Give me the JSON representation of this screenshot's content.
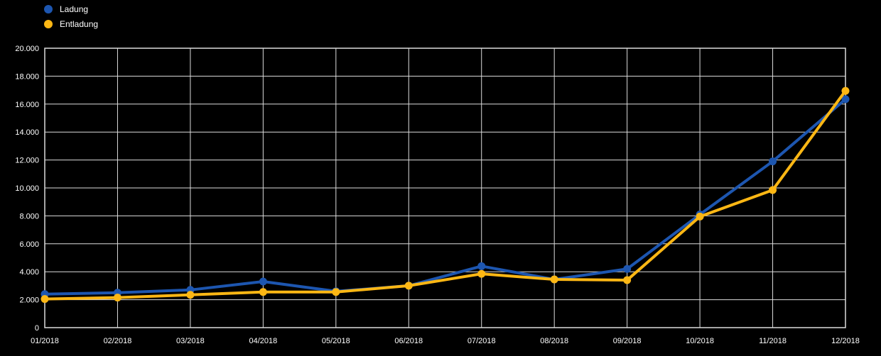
{
  "page": {
    "background": "#000000",
    "text_color": "#ffffff",
    "grid_color": "#dcdcdc"
  },
  "legend": {
    "position": "top-left",
    "items": [
      {
        "label": "Ladung",
        "color": "#1d56b0"
      },
      {
        "label": "Entladung",
        "color": "#fdb714"
      }
    ]
  },
  "chart_data": {
    "type": "line",
    "title": "",
    "xlabel": "",
    "ylabel": "",
    "x": [
      "01/2018",
      "02/2018",
      "03/2018",
      "04/2018",
      "05/2018",
      "06/2018",
      "07/2018",
      "08/2018",
      "09/2018",
      "10/2018",
      "11/2018",
      "12/2018"
    ],
    "series": [
      {
        "name": "Ladung",
        "color": "#1d56b0",
        "values": [
          2400,
          2500,
          2700,
          3300,
          2600,
          3000,
          4400,
          3450,
          4200,
          8100,
          11900,
          16350
        ]
      },
      {
        "name": "Entladung",
        "color": "#fdb714",
        "values": [
          2050,
          2150,
          2350,
          2550,
          2550,
          3000,
          3850,
          3450,
          3400,
          7950,
          9850,
          16950
        ]
      }
    ],
    "ylim": [
      0,
      20000
    ],
    "ytick_step": 2000,
    "ytick_labels": [
      "0",
      "2.000",
      "4.000",
      "6.000",
      "8.000",
      "10.000",
      "12.000",
      "14.000",
      "16.000",
      "18.000",
      "20.000"
    ],
    "grid": true,
    "legend_position": "top-left"
  }
}
